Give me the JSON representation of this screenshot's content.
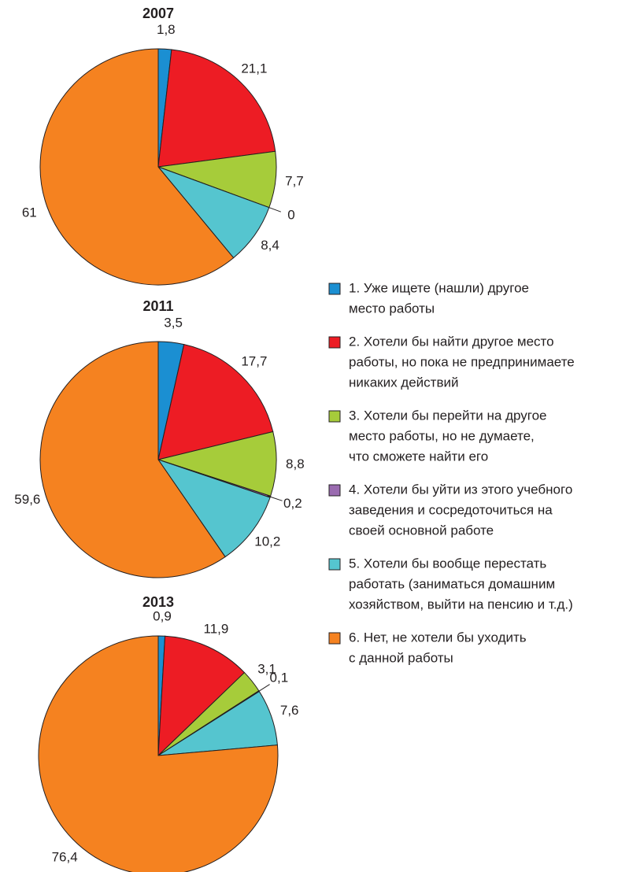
{
  "chart_data": [
    {
      "type": "pie",
      "title": "2007",
      "values": [
        1.8,
        21.1,
        7.7,
        0,
        8.4,
        61
      ],
      "value_labels": [
        "1,8",
        "21,1",
        "7,7",
        "0",
        "8,4",
        "61"
      ]
    },
    {
      "type": "pie",
      "title": "2011",
      "values": [
        3.5,
        17.7,
        8.8,
        0.2,
        10.2,
        59.6
      ],
      "value_labels": [
        "3,5",
        "17,7",
        "8,8",
        "0,2",
        "10,2",
        "59,6"
      ]
    },
    {
      "type": "pie",
      "title": "2013",
      "values": [
        0.9,
        11.9,
        3.1,
        0.1,
        7.6,
        76.4
      ],
      "value_labels": [
        "0,9",
        "11,9",
        "3,1",
        "0,1",
        "7,6",
        "76,4"
      ]
    }
  ],
  "legend": {
    "colors": [
      "#1b8fd2",
      "#ed1c24",
      "#a6cc3a",
      "#9a6bb0",
      "#55c5cf",
      "#f58220"
    ],
    "items": [
      [
        "1. Уже ищете (нашли) другое",
        "место работы"
      ],
      [
        "2. Хотели бы найти другое место",
        "работы, но пока не предпринимаете",
        "никаких действий"
      ],
      [
        "3. Хотели бы перейти на другое",
        "место работы, но не думаете,",
        "что сможете найти его"
      ],
      [
        "4. Хотели бы уйти из этого учебного",
        " заведения и сосредоточиться на",
        "своей основной работе"
      ],
      [
        "5. Хотели бы вообще перестать",
        " работать (заниматься домашним",
        "хозяйством, выйти на пенсию и т.д.)"
      ],
      [
        "6. Нет, не хотели бы уходить",
        "с данной работы"
      ]
    ]
  }
}
